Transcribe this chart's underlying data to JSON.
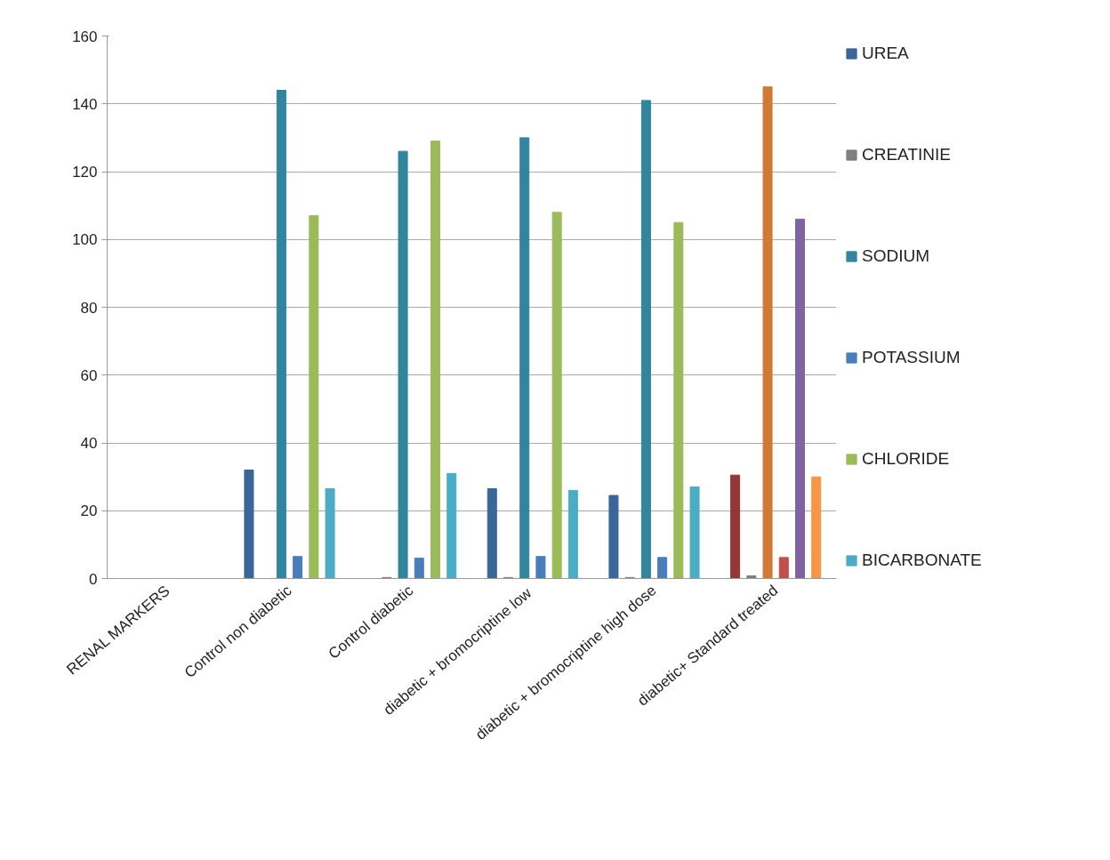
{
  "chart_data": {
    "type": "bar",
    "categories": [
      "RENAL MARKERS",
      "Control non diabetic",
      "Control diabetic",
      "diabetic +  bromocriptine low",
      "diabetic + bromocriptine high dose",
      "diabetic+ Standard treated"
    ],
    "series": [
      {
        "name": "UREA",
        "color": "#3a6699",
        "values": [
          0,
          32,
          0,
          26.5,
          24.5,
          30.5
        ],
        "colors": [
          null,
          null,
          null,
          null,
          null,
          "#953735"
        ]
      },
      {
        "name": "CREATINIE",
        "color": "#7f7f7f",
        "values": [
          0,
          0,
          0.3,
          0.3,
          0.3,
          0.8
        ],
        "colors": [
          null,
          null,
          null,
          null,
          null,
          null
        ]
      },
      {
        "name": "SODIUM",
        "color": "#31859c",
        "values": [
          0,
          144,
          126,
          130,
          141,
          145
        ],
        "colors": [
          null,
          null,
          null,
          null,
          null,
          "#d07a35"
        ]
      },
      {
        "name": "POTASSIUM",
        "color": "#4a7ebb",
        "values": [
          0,
          6.5,
          6,
          6.5,
          6.2,
          6.2
        ],
        "colors": [
          null,
          null,
          null,
          null,
          null,
          "#c0504d"
        ]
      },
      {
        "name": "CHLORIDE",
        "color": "#9bbb59",
        "values": [
          0,
          107,
          129,
          108,
          105,
          106
        ],
        "colors": [
          null,
          null,
          null,
          null,
          null,
          "#8064a2"
        ]
      },
      {
        "name": "BICARBONATE",
        "color": "#4bacc6",
        "values": [
          0,
          26.5,
          31,
          26,
          27,
          30
        ],
        "colors": [
          null,
          null,
          null,
          null,
          null,
          "#f79646"
        ]
      }
    ],
    "ylim": [
      0,
      160
    ],
    "yticks": [
      0,
      20,
      40,
      60,
      80,
      100,
      120,
      140,
      160
    ],
    "grid": "y",
    "legend": "right"
  }
}
